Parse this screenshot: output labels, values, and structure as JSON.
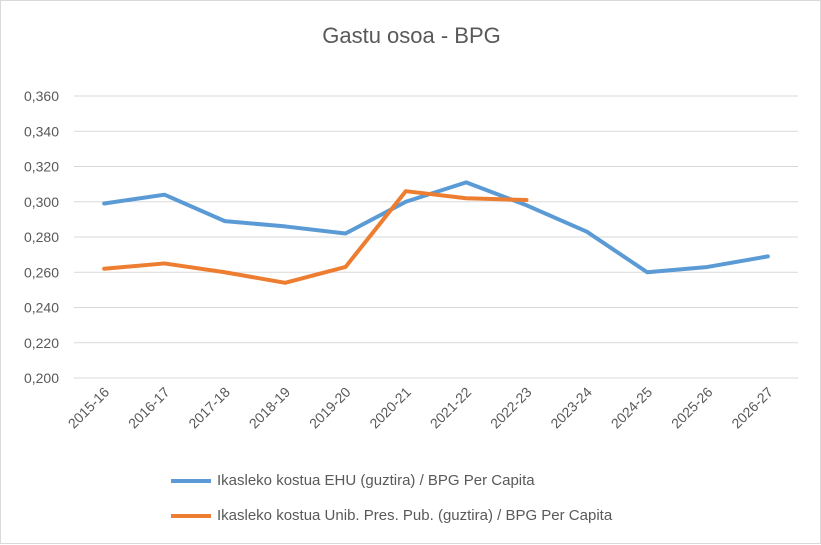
{
  "chart_data": {
    "type": "line",
    "title": "Gastu osoa - BPG",
    "xlabel": "",
    "ylabel": "",
    "ylim": [
      0.2,
      0.36
    ],
    "yticks": [
      "0,200",
      "0,220",
      "0,240",
      "0,260",
      "0,280",
      "0,300",
      "0,320",
      "0,340",
      "0,360"
    ],
    "ytick_values": [
      0.2,
      0.22,
      0.24,
      0.26,
      0.28,
      0.3,
      0.32,
      0.34,
      0.36
    ],
    "grid": true,
    "legend_position": "bottom",
    "categories": [
      "2015-16",
      "2016-17",
      "2017-18",
      "2018-19",
      "2019-20",
      "2020-21",
      "2021-22",
      "2022-23",
      "2023-24",
      "2024-25",
      "2025-26",
      "2026-27"
    ],
    "series": [
      {
        "name": "Ikasleko kostua EHU (guztira) / BPG Per Capita",
        "color": "#5B9BD5",
        "values": [
          0.299,
          0.304,
          0.289,
          0.286,
          0.282,
          0.3,
          0.311,
          0.298,
          0.283,
          0.26,
          0.263,
          0.269
        ]
      },
      {
        "name": "Ikasleko kostua Unib. Pres. Pub. (guztira) / BPG Per Capita",
        "color": "#ED7D31",
        "values": [
          0.262,
          0.265,
          0.26,
          0.254,
          0.263,
          0.306,
          0.302,
          0.301,
          null,
          null,
          null,
          null
        ]
      }
    ]
  }
}
